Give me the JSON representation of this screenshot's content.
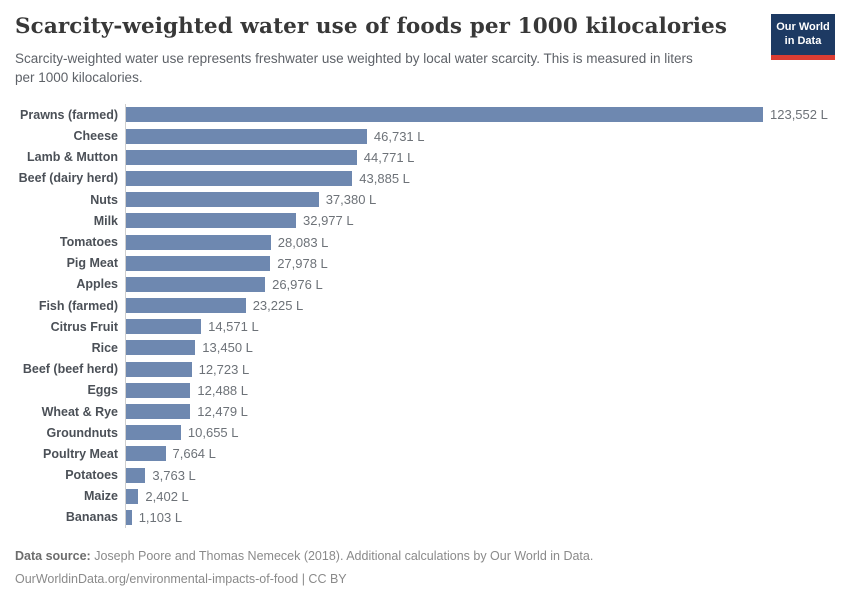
{
  "header": {
    "title": "Scarcity-weighted water use of foods per 1000 kilocalories",
    "subtitle": "Scarcity-weighted water use represents freshwater use weighted by local water scarcity. This is measured in liters per 1000 kilocalories.",
    "logo": {
      "line1": "Our World",
      "line2": "in Data"
    }
  },
  "chart_data": {
    "type": "bar",
    "orientation": "horizontal",
    "title": "Scarcity-weighted water use of foods per 1000 kilocalories",
    "xlabel": "",
    "ylabel": "",
    "xlim": [
      0,
      123552
    ],
    "grid": false,
    "legend": false,
    "unit": "L",
    "bar_color": "#6e88b0",
    "categories": [
      "Prawns (farmed)",
      "Cheese",
      "Lamb & Mutton",
      "Beef (dairy herd)",
      "Nuts",
      "Milk",
      "Tomatoes",
      "Pig Meat",
      "Apples",
      "Fish (farmed)",
      "Citrus Fruit",
      "Rice",
      "Beef (beef herd)",
      "Eggs",
      "Wheat & Rye",
      "Groundnuts",
      "Poultry Meat",
      "Potatoes",
      "Maize",
      "Bananas"
    ],
    "values": [
      123552,
      46731,
      44771,
      43885,
      37380,
      32977,
      28083,
      27978,
      26976,
      23225,
      14571,
      13450,
      12723,
      12488,
      12479,
      10655,
      7664,
      3763,
      2402,
      1103
    ],
    "value_labels": [
      "123,552 L",
      "46,731 L",
      "44,771 L",
      "43,885 L",
      "37,380 L",
      "32,977 L",
      "28,083 L",
      "27,978 L",
      "26,976 L",
      "23,225 L",
      "14,571 L",
      "13,450 L",
      "12,723 L",
      "12,488 L",
      "12,479 L",
      "10,655 L",
      "7,664 L",
      "3,763 L",
      "2,402 L",
      "1,103 L"
    ]
  },
  "footer": {
    "datasource_label": "Data source:",
    "datasource_text": " Joseph Poore and Thomas Nemecek (2018). Additional calculations by Our World in Data.",
    "link_line": "OurWorldinData.org/environmental-impacts-of-food | CC BY"
  },
  "colors": {
    "bar": "#6e88b0",
    "title": "#383838",
    "subtitle": "#5e6268",
    "category_label": "#4b5057",
    "value_label": "#6d7278",
    "axis_line": "#cfcfcf",
    "logo_bg": "#1d3a63",
    "logo_accent": "#dc3d33"
  }
}
